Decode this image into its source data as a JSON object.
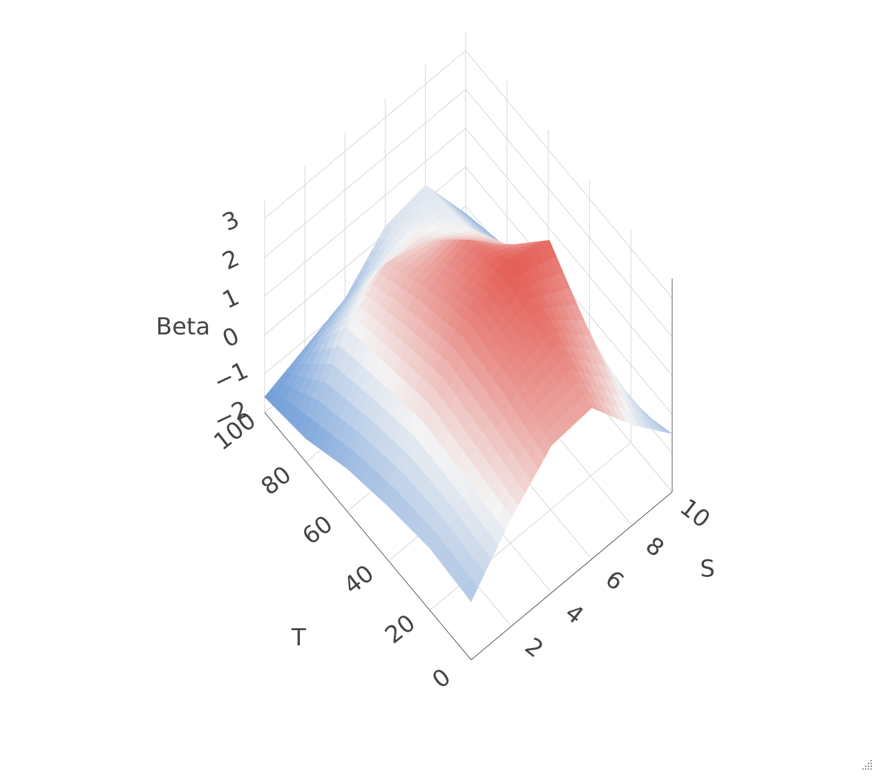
{
  "chart_data": {
    "type": "surface",
    "title": "",
    "axes": {
      "x": {
        "label": "S",
        "range": [
          0,
          10
        ],
        "ticks": [
          2,
          4,
          6,
          8,
          10
        ]
      },
      "y": {
        "label": "T",
        "range": [
          0,
          100
        ],
        "ticks": [
          0,
          20,
          40,
          60,
          80,
          100
        ]
      },
      "z": {
        "label": "Beta",
        "range": [
          -2,
          3.5
        ],
        "ticks": [
          -2,
          -1,
          0,
          1,
          2,
          3
        ]
      }
    },
    "grid": true,
    "colorscale": {
      "low": "#5b8fd4",
      "mid": "#ffffff",
      "high": "#e8443a"
    },
    "surface": {
      "S": [
        0,
        2,
        4,
        6,
        8,
        10
      ],
      "T": [
        0,
        20,
        40,
        60,
        80,
        100
      ],
      "Beta": [
        [
          -0.5,
          0.8,
          1.8,
          1.9,
          0.6,
          -0.5
        ],
        [
          -0.4,
          1.0,
          2.2,
          2.6,
          1.6,
          -1.0
        ],
        [
          -0.6,
          1.2,
          2.4,
          3.0,
          2.8,
          -1.6
        ],
        [
          -0.9,
          0.9,
          2.0,
          2.4,
          1.4,
          -1.2
        ],
        [
          -1.4,
          0.6,
          1.4,
          1.1,
          0.6,
          -0.8
        ],
        [
          -1.6,
          -1.2,
          -0.8,
          0.2,
          0.4,
          -1.2
        ]
      ]
    }
  },
  "ui": {
    "resize_grip_icon": "resize-grip-icon"
  }
}
